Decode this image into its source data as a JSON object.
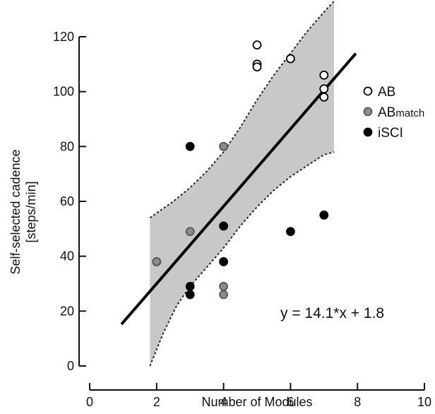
{
  "chart_data": {
    "type": "scatter",
    "title": "",
    "xlabel": "Number of Modules",
    "ylabel": [
      "Self-selected cadence",
      "[steps/min]"
    ],
    "xlim": [
      0,
      10
    ],
    "ylim": [
      0,
      120
    ],
    "xticks": [
      0,
      2,
      4,
      6,
      8,
      10
    ],
    "yticks": [
      0,
      20,
      40,
      60,
      80,
      100,
      120
    ],
    "grid": false,
    "legend_position": "right",
    "series": [
      {
        "name": "AB",
        "marker": "open-circle",
        "color": "#ffffff",
        "points": [
          {
            "x": 5,
            "y": 117
          },
          {
            "x": 5,
            "y": 110
          },
          {
            "x": 5,
            "y": 109
          },
          {
            "x": 6,
            "y": 112
          },
          {
            "x": 7,
            "y": 106
          },
          {
            "x": 7,
            "y": 101
          },
          {
            "x": 7,
            "y": 98
          }
        ]
      },
      {
        "name": "AB",
        "name_subscript": "match",
        "marker": "filled-circle",
        "color": "#8c8c8c",
        "points": [
          {
            "x": 2,
            "y": 38
          },
          {
            "x": 3,
            "y": 49
          },
          {
            "x": 4,
            "y": 80
          },
          {
            "x": 4,
            "y": 29
          },
          {
            "x": 4,
            "y": 26
          }
        ]
      },
      {
        "name": "iSCI",
        "marker": "filled-circle",
        "color": "#000000",
        "points": [
          {
            "x": 3,
            "y": 80
          },
          {
            "x": 3,
            "y": 29
          },
          {
            "x": 3,
            "y": 26
          },
          {
            "x": 4,
            "y": 51
          },
          {
            "x": 4,
            "y": 38
          },
          {
            "x": 6,
            "y": 49
          },
          {
            "x": 7,
            "y": 55
          }
        ]
      }
    ],
    "regression": {
      "slope": 14.1,
      "intercept": 1.8,
      "x_range": [
        0.95,
        7.95
      ],
      "equation_label": "y = 14.1*x + 1.8",
      "color": "#000000"
    },
    "confidence_band": {
      "fill_color": "#c8c8c8",
      "edge_color": "#222222",
      "upper": [
        {
          "x": 1.8,
          "y": 54
        },
        {
          "x": 2.5,
          "y": 60
        },
        {
          "x": 3.0,
          "y": 65
        },
        {
          "x": 3.5,
          "y": 71
        },
        {
          "x": 4.0,
          "y": 78
        },
        {
          "x": 4.5,
          "y": 87
        },
        {
          "x": 5.0,
          "y": 97
        },
        {
          "x": 5.5,
          "y": 106
        },
        {
          "x": 6.0,
          "y": 114
        },
        {
          "x": 6.5,
          "y": 122
        },
        {
          "x": 7.0,
          "y": 129
        },
        {
          "x": 7.3,
          "y": 133
        }
      ],
      "lower": [
        {
          "x": 1.8,
          "y": 0
        },
        {
          "x": 2.2,
          "y": 12
        },
        {
          "x": 2.6,
          "y": 22
        },
        {
          "x": 3.0,
          "y": 29
        },
        {
          "x": 3.5,
          "y": 36
        },
        {
          "x": 4.0,
          "y": 43
        },
        {
          "x": 4.5,
          "y": 51
        },
        {
          "x": 5.0,
          "y": 58
        },
        {
          "x": 5.5,
          "y": 64
        },
        {
          "x": 6.0,
          "y": 69
        },
        {
          "x": 6.5,
          "y": 73
        },
        {
          "x": 7.0,
          "y": 77
        },
        {
          "x": 7.3,
          "y": 78
        }
      ]
    }
  }
}
